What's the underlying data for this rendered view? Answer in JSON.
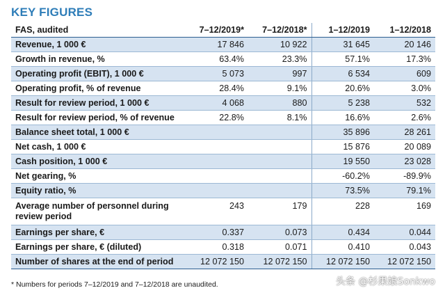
{
  "title": "KEY FIGURES",
  "table": {
    "header": [
      "FAS, audited",
      "7–12/2019*",
      "7–12/2018*",
      "1–12/2019",
      "1–12/2018"
    ],
    "rows": [
      {
        "label": "Revenue, 1 000 €",
        "values": [
          "17 846",
          "10 922",
          "31 645",
          "20 146"
        ]
      },
      {
        "label": "Growth in revenue, %",
        "values": [
          "63.4%",
          "23.3%",
          "57.1%",
          "17.3%"
        ]
      },
      {
        "label": "Operating profit (EBIT), 1 000 €",
        "values": [
          "5 073",
          "997",
          "6 534",
          "609"
        ]
      },
      {
        "label": "Operating profit, % of revenue",
        "values": [
          "28.4%",
          "9.1%",
          "20.6%",
          "3.0%"
        ]
      },
      {
        "label": "Result for review period, 1 000 €",
        "values": [
          "4 068",
          "880",
          "5 238",
          "532"
        ]
      },
      {
        "label": "Result for review period, % of revenue",
        "values": [
          "22.8%",
          "8.1%",
          "16.6%",
          "2.6%"
        ]
      },
      {
        "label": "Balance sheet total, 1 000 €",
        "values": [
          "",
          "",
          "35 896",
          "28 261"
        ]
      },
      {
        "label": "Net cash, 1 000 €",
        "values": [
          "",
          "",
          "15 876",
          "20 089"
        ]
      },
      {
        "label": "Cash position, 1 000 €",
        "values": [
          "",
          "",
          "19 550",
          "23 028"
        ]
      },
      {
        "label": "Net gearing, %",
        "values": [
          "",
          "",
          "-60.2%",
          "-89.9%"
        ]
      },
      {
        "label": "Equity ratio, %",
        "values": [
          "",
          "",
          "73.5%",
          "79.1%"
        ]
      },
      {
        "label": "Average number of personnel during review period",
        "values": [
          "243",
          "179",
          "228",
          "169"
        ]
      },
      {
        "label": "Earnings per share, €",
        "values": [
          "0.337",
          "0.073",
          "0.434",
          "0.044"
        ]
      },
      {
        "label": "Earnings per share, € (diluted)",
        "values": [
          "0.318",
          "0.071",
          "0.410",
          "0.043"
        ]
      },
      {
        "label": "Number of shares at the end of period",
        "values": [
          "12 072 150",
          "12 072 150",
          "12 072 150",
          "12 072 150"
        ]
      }
    ]
  },
  "footnote": "* Numbers for periods 7–12/2019 and 7–12/2018 are unaudited.",
  "watermark": "头条 @杉果娘Sonkwo",
  "colors": {
    "title": "#2e7db8",
    "row_shade": "#d6e3f1",
    "rule": "#2b5d8f"
  }
}
